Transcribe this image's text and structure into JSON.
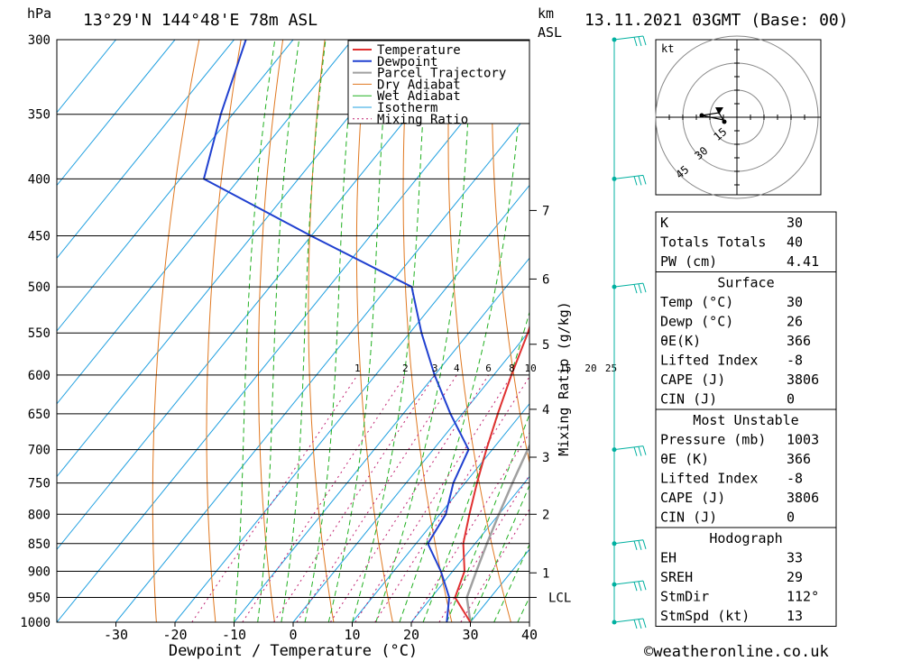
{
  "header": {
    "hpa_unit": "hPa",
    "location": "13°29'N 144°48'E 78m ASL",
    "km_unit": "km",
    "asl_unit": "ASL",
    "datetime": "13.11.2021 03GMT (Base: 00)"
  },
  "footer": {
    "credit": "©weatheronline.co.uk"
  },
  "chart_data": {
    "type": "line",
    "title": "",
    "xlabel": "Dewpoint / Temperature (°C)",
    "ylabel": "hPa",
    "secondary_ylabel": "Mixing Ratio (g/kg)",
    "xlim": [
      -40,
      40
    ],
    "ylim": [
      1000,
      300
    ],
    "x_ticks": [
      "-30",
      "-20",
      "-10",
      "0",
      "10",
      "20",
      "30",
      "40"
    ],
    "pressure_levels": [
      300,
      350,
      400,
      450,
      500,
      550,
      600,
      650,
      700,
      750,
      800,
      850,
      900,
      950,
      1000
    ],
    "km_labels": [
      {
        "label": "7",
        "p": 427
      },
      {
        "label": "6",
        "p": 492
      },
      {
        "label": "5",
        "p": 563
      },
      {
        "label": "4",
        "p": 644
      },
      {
        "label": "3",
        "p": 711
      },
      {
        "label": "2",
        "p": 800
      },
      {
        "label": "1",
        "p": 903
      },
      {
        "label": "LCL",
        "p": 950
      }
    ],
    "mixing_ratio_labels": [
      "1",
      "2",
      "3",
      "4",
      "6",
      "8",
      "10",
      "15",
      "20",
      "25"
    ],
    "legend": [
      "Temperature",
      "Dewpoint",
      "Parcel Trajectory",
      "Dry Adiabat",
      "Wet Adiabat",
      "Isotherm",
      "Mixing Ratio"
    ],
    "legend_position": "top-right",
    "colors": {
      "temperature": "#e03030",
      "dewpoint": "#2040d0",
      "parcel": "#a0a0a0",
      "dry_adiabat": "#e07820",
      "wet_adiabat": "#20b020",
      "isotherm": "#20a0e0",
      "mixing_ratio": "#c02070",
      "wind": "#00b0a0"
    },
    "series": [
      {
        "name": "Temperature",
        "points": [
          [
            30,
            1000
          ],
          [
            24,
            950
          ],
          [
            22,
            900
          ],
          [
            18,
            850
          ],
          [
            15,
            800
          ],
          [
            12,
            750
          ],
          [
            9,
            700
          ],
          [
            6,
            650
          ],
          [
            3,
            600
          ],
          [
            0,
            550
          ],
          [
            -4,
            500
          ],
          [
            -10,
            450
          ],
          [
            -15,
            400
          ],
          [
            -26,
            350
          ],
          [
            -40,
            300
          ]
        ]
      },
      {
        "name": "Dewpoint",
        "points": [
          [
            26,
            1000
          ],
          [
            23,
            950
          ],
          [
            18,
            900
          ],
          [
            12,
            850
          ],
          [
            11,
            800
          ],
          [
            8,
            750
          ],
          [
            6,
            700
          ],
          [
            -2,
            650
          ],
          [
            -10,
            600
          ],
          [
            -18,
            550
          ],
          [
            -26,
            500
          ],
          [
            -50,
            450
          ],
          [
            -76,
            400
          ],
          [
            -82,
            350
          ],
          [
            -88,
            300
          ]
        ]
      },
      {
        "name": "Parcel Trajectory",
        "points": [
          [
            30,
            1000
          ],
          [
            26,
            950
          ],
          [
            24,
            900
          ],
          [
            22,
            850
          ],
          [
            20,
            800
          ],
          [
            18,
            750
          ],
          [
            16,
            700
          ],
          [
            14,
            650
          ],
          [
            12,
            600
          ],
          [
            10,
            550
          ],
          [
            7,
            500
          ],
          [
            3,
            450
          ],
          [
            -2,
            400
          ],
          [
            -9,
            350
          ]
        ]
      }
    ],
    "wind_levels": [
      300,
      400,
      500,
      700,
      850,
      925,
      1000
    ]
  },
  "hodograph": {
    "unit": "kt",
    "rings": [
      "15",
      "30",
      "45"
    ]
  },
  "indices": {
    "rows": [
      {
        "label": "K",
        "value": "30"
      },
      {
        "label": "Totals Totals",
        "value": "40"
      },
      {
        "label": "PW (cm)",
        "value": "4.41"
      }
    ],
    "surface": {
      "title": "Surface",
      "rows": [
        {
          "label": "Temp (°C)",
          "value": "30"
        },
        {
          "label": "Dewp (°C)",
          "value": "26"
        },
        {
          "label": "θE(K)",
          "value": "366"
        },
        {
          "label": "Lifted Index",
          "value": "-8"
        },
        {
          "label": "CAPE (J)",
          "value": "3806"
        },
        {
          "label": "CIN (J)",
          "value": "0"
        }
      ]
    },
    "most_unstable": {
      "title": "Most Unstable",
      "rows": [
        {
          "label": "Pressure (mb)",
          "value": "1003"
        },
        {
          "label": "θE (K)",
          "value": "366"
        },
        {
          "label": "Lifted Index",
          "value": "-8"
        },
        {
          "label": "CAPE (J)",
          "value": "3806"
        },
        {
          "label": "CIN (J)",
          "value": "0"
        }
      ]
    },
    "hodograph_box": {
      "title": "Hodograph",
      "rows": [
        {
          "label": "EH",
          "value": "33"
        },
        {
          "label": "SREH",
          "value": "29"
        },
        {
          "label": "StmDir",
          "value": "112°"
        },
        {
          "label": "StmSpd (kt)",
          "value": "13"
        }
      ]
    }
  }
}
